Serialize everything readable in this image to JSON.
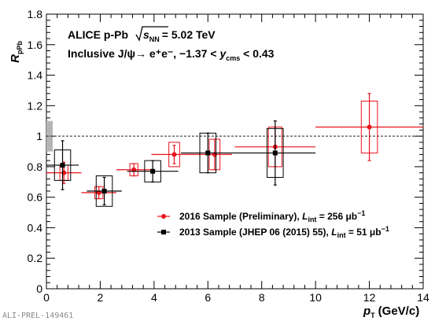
{
  "chart_data": {
    "type": "scatter",
    "experiment": "ALICE",
    "system": "p-Pb",
    "energy_label": "= 5.02 TeV",
    "process_label": "Inclusive J/ψ→ e⁺e⁻, −1.37 < ",
    "rapidity_tail": " < 0.43",
    "ylabel": "R",
    "ylabel_sub": "pPb",
    "xlabel_var": "p",
    "xlabel_sub": "T",
    "xlabel_unit": "(GeV/c)",
    "xlim": [
      0,
      14
    ],
    "ylim": [
      0,
      1.8
    ],
    "x_ticks": [
      "0",
      "2",
      "4",
      "6",
      "8",
      "10",
      "12",
      "14"
    ],
    "y_ticks": [
      "0",
      "0.2",
      "0.4",
      "0.6",
      "0.8",
      "1",
      "1.2",
      "1.4",
      "1.6",
      "1.8"
    ],
    "reference_line": 1.0,
    "global_uncertainty": {
      "low": 0.9,
      "high": 1.1
    },
    "legend_position": "lower-right",
    "watermark": "ALI-PREL-149461",
    "series": [
      {
        "name": "2016 Sample (Preliminary),",
        "legend_lumi": " = 256 μb",
        "legend_exp": "−1",
        "color": "#e8141c",
        "marker": "circle",
        "points": [
          {
            "x": 0.65,
            "xerr": 0.65,
            "y": 0.76,
            "stat": 0.07,
            "sys": 0.05,
            "boxw": 0.15
          },
          {
            "x": 1.95,
            "xerr": 0.65,
            "y": 0.63,
            "stat": 0.04,
            "sys": 0.04,
            "boxw": 0.15
          },
          {
            "x": 3.25,
            "xerr": 0.65,
            "y": 0.78,
            "stat": 0.04,
            "sys": 0.04,
            "boxw": 0.15
          },
          {
            "x": 4.75,
            "xerr": 0.85,
            "y": 0.88,
            "stat": 0.06,
            "sys": 0.08,
            "boxw": 0.2
          },
          {
            "x": 6.25,
            "xerr": 0.65,
            "y": 0.88,
            "stat": 0.1,
            "sys": 0.1,
            "boxw": 0.2
          },
          {
            "x": 8.5,
            "xerr": 1.5,
            "y": 0.93,
            "stat": 0.13,
            "sys": 0.13,
            "boxw": 0.25
          },
          {
            "x": 12.0,
            "xerr": 2.0,
            "y": 1.06,
            "stat": 0.22,
            "sys": 0.17,
            "boxw": 0.3
          }
        ]
      },
      {
        "name": "2013 Sample (JHEP 06 (2015) 55),",
        "legend_lumi": " = 51 μb",
        "legend_exp": "−1",
        "color": "#000000",
        "marker": "square",
        "points": [
          {
            "x": 0.6,
            "xerr": 0.6,
            "y": 0.81,
            "stat": 0.16,
            "sys": 0.1,
            "boxw": 0.3
          },
          {
            "x": 2.15,
            "xerr": 0.65,
            "y": 0.64,
            "stat": 0.09,
            "sys": 0.1,
            "boxw": 0.3
          },
          {
            "x": 3.95,
            "xerr": 0.95,
            "y": 0.77,
            "stat": 0.07,
            "sys": 0.07,
            "boxw": 0.3
          },
          {
            "x": 6.0,
            "xerr": 1.0,
            "y": 0.89,
            "stat": 0.13,
            "sys": 0.13,
            "boxw": 0.3
          },
          {
            "x": 8.5,
            "xerr": 1.5,
            "y": 0.89,
            "stat": 0.21,
            "sys": 0.16,
            "boxw": 0.3
          }
        ]
      }
    ]
  }
}
